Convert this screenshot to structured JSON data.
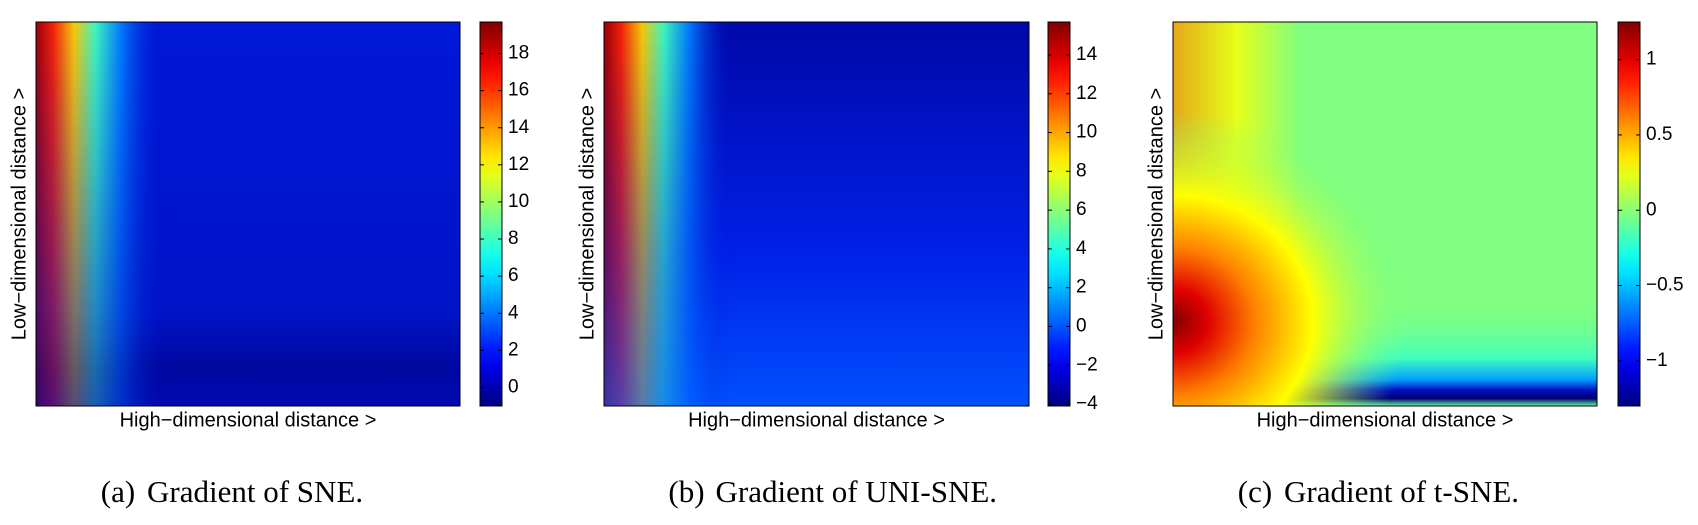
{
  "chart_data": [
    {
      "type": "heatmap",
      "label": "(a)",
      "caption": "Gradient of SNE.",
      "xlabel": "High−dimensional distance >",
      "ylabel": "Low−dimensional distance >",
      "clim": [
        -1,
        19.7
      ],
      "cticks": [
        0,
        2,
        4,
        6,
        8,
        10,
        12,
        14,
        16,
        18
      ],
      "colormap": "jet"
    },
    {
      "type": "heatmap",
      "label": "(b)",
      "caption": "Gradient of UNI-SNE.",
      "xlabel": "High−dimensional distance >",
      "ylabel": "Low−dimensional distance >",
      "clim": [
        -4.1,
        15.7
      ],
      "cticks": [
        {
          "value": -4,
          "label": "−4"
        },
        {
          "value": -2,
          "label": "−2"
        },
        0,
        2,
        4,
        6,
        8,
        10,
        12,
        14
      ],
      "colormap": "jet"
    },
    {
      "type": "heatmap",
      "label": "(c)",
      "caption": "Gradient of t-SNE.",
      "xlabel": "High−dimensional distance >",
      "ylabel": "Low−dimensional distance >",
      "clim": [
        -1.3,
        1.25
      ],
      "cticks": [
        {
          "value": -1,
          "label": "−1"
        },
        {
          "value": -0.5,
          "label": "−0.5"
        },
        0,
        0.5,
        1
      ],
      "colormap": "jet"
    }
  ]
}
